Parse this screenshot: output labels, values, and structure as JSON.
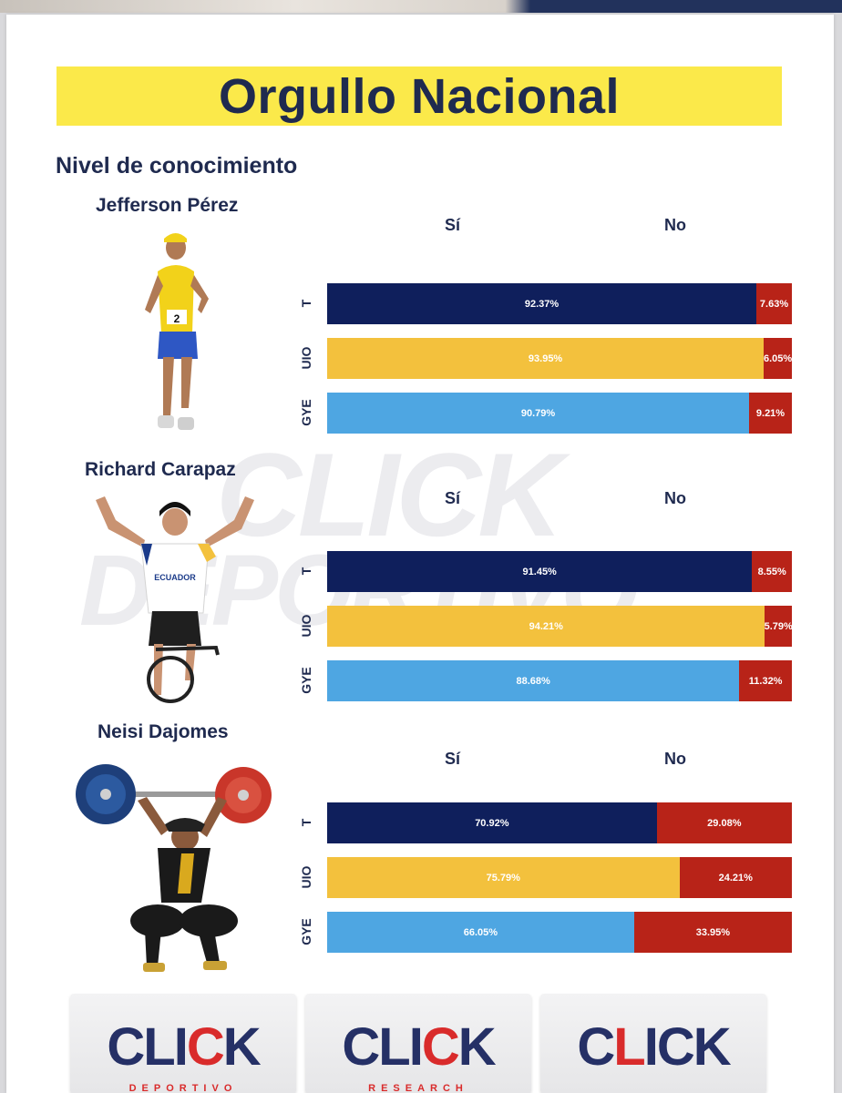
{
  "title": "Orgullo Nacional",
  "section_title": "Nivel de conocimiento",
  "colors": {
    "T": "#0f1f5c",
    "UIO": "#f3c13d",
    "GYE": "#4ea6e2",
    "no": "#b82318",
    "title_band": "#fbe94a"
  },
  "chart_data": [
    {
      "type": "bar",
      "stacked": true,
      "orientation": "horizontal",
      "title": "Jefferson Pérez",
      "legend": [
        "Sí",
        "No"
      ],
      "categories": [
        "T",
        "UIO",
        "GYE"
      ],
      "series": [
        {
          "name": "Sí",
          "values": [
            92.37,
            93.95,
            90.79
          ],
          "labels": [
            "92.37%",
            "93.95%",
            "90.79%"
          ]
        },
        {
          "name": "No",
          "values": [
            7.63,
            6.05,
            9.21
          ],
          "labels": [
            "7.63%",
            "6.05%",
            "9.21%"
          ]
        }
      ],
      "xlim": [
        0,
        100
      ]
    },
    {
      "type": "bar",
      "stacked": true,
      "orientation": "horizontal",
      "title": "Richard Carapaz",
      "legend": [
        "Sí",
        "No"
      ],
      "categories": [
        "T",
        "UIO",
        "GYE"
      ],
      "series": [
        {
          "name": "Sí",
          "values": [
            91.45,
            94.21,
            88.68
          ],
          "labels": [
            "91.45%",
            "94.21%",
            "88.68%"
          ]
        },
        {
          "name": "No",
          "values": [
            8.55,
            5.79,
            11.32
          ],
          "labels": [
            "8.55%",
            "5.79%",
            "11.32%"
          ]
        }
      ],
      "xlim": [
        0,
        100
      ]
    },
    {
      "type": "bar",
      "stacked": true,
      "orientation": "horizontal",
      "title": "Neisi Dajomes",
      "legend": [
        "Sí",
        "No"
      ],
      "categories": [
        "T",
        "UIO",
        "GYE"
      ],
      "series": [
        {
          "name": "Sí",
          "values": [
            70.92,
            75.79,
            66.05
          ],
          "labels": [
            "70.92%",
            "75.79%",
            "66.05%"
          ]
        },
        {
          "name": "No",
          "values": [
            29.08,
            24.21,
            33.95
          ],
          "labels": [
            "29.08%",
            "24.21%",
            "33.95%"
          ]
        }
      ],
      "xlim": [
        0,
        100
      ]
    }
  ],
  "logos": [
    {
      "word_a": "CLI",
      "word_r": "C",
      "word_b": "K",
      "sub": "DEPORTIVO",
      "icon": "soccer-ball-icon"
    },
    {
      "word_a": "CLI",
      "word_r": "C",
      "word_b": "K",
      "sub": "RESEARCH",
      "icon": "magnifier-icon"
    },
    {
      "word_a": "C",
      "word_r": "L",
      "word_b": "ICK",
      "sub": "",
      "icon": "bar-chart-icon"
    }
  ],
  "watermark": {
    "line1": "CLICK",
    "line2": "DEPORTIVO"
  }
}
